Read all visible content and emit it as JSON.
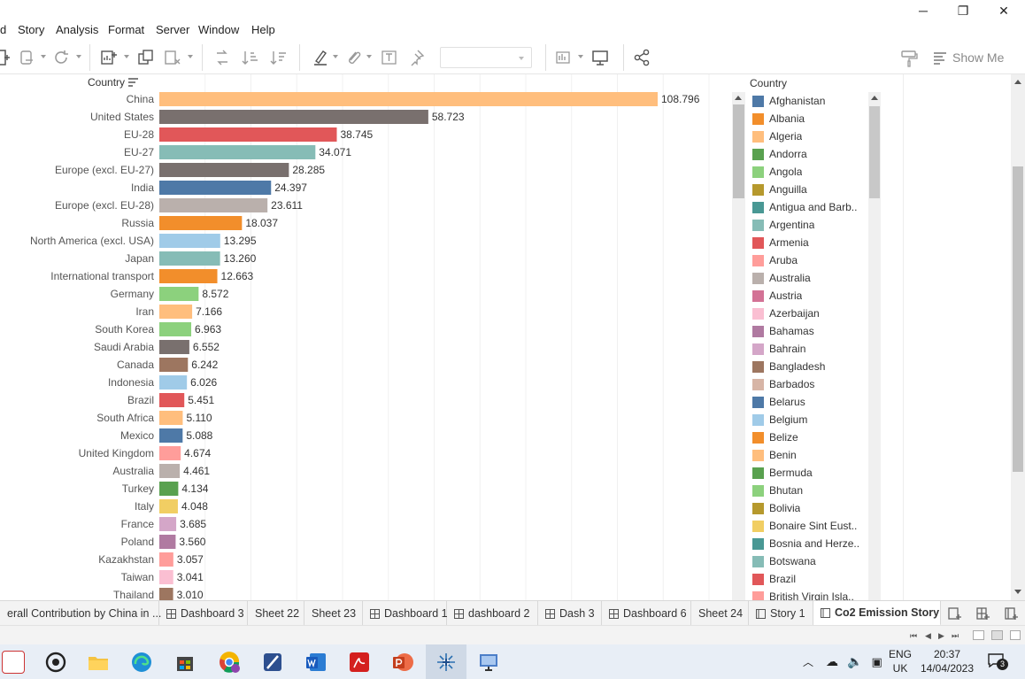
{
  "menu": {
    "items": [
      "d",
      "Story",
      "Analysis",
      "Format",
      "Server",
      "Window",
      "Help"
    ]
  },
  "window_controls": {
    "minimize": "─",
    "restore": "❐",
    "close": "✕"
  },
  "toolbar": {
    "show_me_label": "Show Me"
  },
  "chart_data": {
    "type": "bar",
    "orientation": "horizontal",
    "xlabel": "",
    "ylabel": "Country",
    "sorted": "descending",
    "categories": [
      "China",
      "United States",
      "EU-28",
      "EU-27",
      "Europe (excl. EU-27)",
      "India",
      "Europe (excl. EU-28)",
      "Russia",
      "North America (excl. USA)",
      "Japan",
      "International transport",
      "Germany",
      "Iran",
      "South Korea",
      "Saudi Arabia",
      "Canada",
      "Indonesia",
      "Brazil",
      "South Africa",
      "Mexico",
      "United Kingdom",
      "Australia",
      "Turkey",
      "Italy",
      "France",
      "Poland",
      "Kazakhstan",
      "Taiwan",
      "Thailand"
    ],
    "values": [
      108.796,
      58.723,
      38.745,
      34.071,
      28.285,
      24.397,
      23.611,
      18.037,
      13.295,
      13.26,
      12.663,
      8.572,
      7.166,
      6.963,
      6.552,
      6.242,
      6.026,
      5.451,
      5.11,
      5.088,
      4.674,
      4.461,
      4.134,
      4.048,
      3.685,
      3.56,
      3.057,
      3.041,
      3.01
    ],
    "value_labels": [
      "108.796",
      "58.723",
      "38.745",
      "34.071",
      "28.285",
      "24.397",
      "23.611",
      "18.037",
      "13.295",
      "13.260",
      "12.663",
      "8.572",
      "7.166",
      "6.963",
      "6.552",
      "6.242",
      "6.026",
      "5.451",
      "5.110",
      "5.088",
      "4.674",
      "4.461",
      "4.134",
      "4.048",
      "3.685",
      "3.560",
      "3.057",
      "3.041",
      "3.010"
    ],
    "colors": [
      "#ffbe7d",
      "#79706e",
      "#e15759",
      "#86bcb6",
      "#79706e",
      "#4e79a7",
      "#bab0ac",
      "#f28e2b",
      "#a0cbe8",
      "#86bcb6",
      "#f28e2b",
      "#8cd17d",
      "#ffbe7d",
      "#8cd17d",
      "#79706e",
      "#9d7660",
      "#a0cbe8",
      "#e15759",
      "#ffbe7d",
      "#4e79a7",
      "#ff9d9a",
      "#bab0ac",
      "#59a14f",
      "#f1ce63",
      "#d4a6c8",
      "#b07aa1",
      "#ff9d9a",
      "#fabfd2",
      "#9d7660"
    ],
    "xlim": [
      0,
      120
    ],
    "grid": true,
    "legend_position": "right"
  },
  "legend": {
    "title": "Country",
    "items": [
      {
        "label": "Afghanistan",
        "color": "#4e79a7"
      },
      {
        "label": "Albania",
        "color": "#f28e2b"
      },
      {
        "label": "Algeria",
        "color": "#ffbe7d"
      },
      {
        "label": "Andorra",
        "color": "#59a14f"
      },
      {
        "label": "Angola",
        "color": "#8cd17d"
      },
      {
        "label": "Anguilla",
        "color": "#b6992d"
      },
      {
        "label": "Antigua and Barb..",
        "color": "#499894"
      },
      {
        "label": "Argentina",
        "color": "#86bcb6"
      },
      {
        "label": "Armenia",
        "color": "#e15759"
      },
      {
        "label": "Aruba",
        "color": "#ff9d9a"
      },
      {
        "label": "Australia",
        "color": "#bab0ac"
      },
      {
        "label": "Austria",
        "color": "#d37295"
      },
      {
        "label": "Azerbaijan",
        "color": "#fabfd2"
      },
      {
        "label": "Bahamas",
        "color": "#b07aa1"
      },
      {
        "label": "Bahrain",
        "color": "#d4a6c8"
      },
      {
        "label": "Bangladesh",
        "color": "#9d7660"
      },
      {
        "label": "Barbados",
        "color": "#d7b5a6"
      },
      {
        "label": "Belarus",
        "color": "#4e79a7"
      },
      {
        "label": "Belgium",
        "color": "#a0cbe8"
      },
      {
        "label": "Belize",
        "color": "#f28e2b"
      },
      {
        "label": "Benin",
        "color": "#ffbe7d"
      },
      {
        "label": "Bermuda",
        "color": "#59a14f"
      },
      {
        "label": "Bhutan",
        "color": "#8cd17d"
      },
      {
        "label": "Bolivia",
        "color": "#b6992d"
      },
      {
        "label": "Bonaire Sint Eust..",
        "color": "#f1ce63"
      },
      {
        "label": "Bosnia and Herze..",
        "color": "#499894"
      },
      {
        "label": "Botswana",
        "color": "#86bcb6"
      },
      {
        "label": "Brazil",
        "color": "#e15759"
      },
      {
        "label": "British Virgin Isla..",
        "color": "#ff9d9a"
      }
    ]
  },
  "tabs": [
    {
      "label": "erall Contribution by China in ...",
      "icon": "none"
    },
    {
      "label": "Dashboard 3",
      "icon": "dashboard-icon"
    },
    {
      "label": "Sheet 22",
      "icon": "none"
    },
    {
      "label": "Sheet 23",
      "icon": "none"
    },
    {
      "label": "Dashboard 1",
      "icon": "dashboard-icon"
    },
    {
      "label": "dashboard 2",
      "icon": "dashboard-icon"
    },
    {
      "label": "Dash 3",
      "icon": "dashboard-icon"
    },
    {
      "label": "Dashboard 6",
      "icon": "dashboard-icon"
    },
    {
      "label": "Sheet 24",
      "icon": "none"
    },
    {
      "label": "Story 1",
      "icon": "story-icon"
    },
    {
      "label": "Co2 Emission Story",
      "icon": "story-icon",
      "active": true
    }
  ],
  "taskbar": {
    "language": "ENG",
    "region": "UK",
    "time": "20:37",
    "date": "14/04/2023",
    "notification_count": "3"
  }
}
